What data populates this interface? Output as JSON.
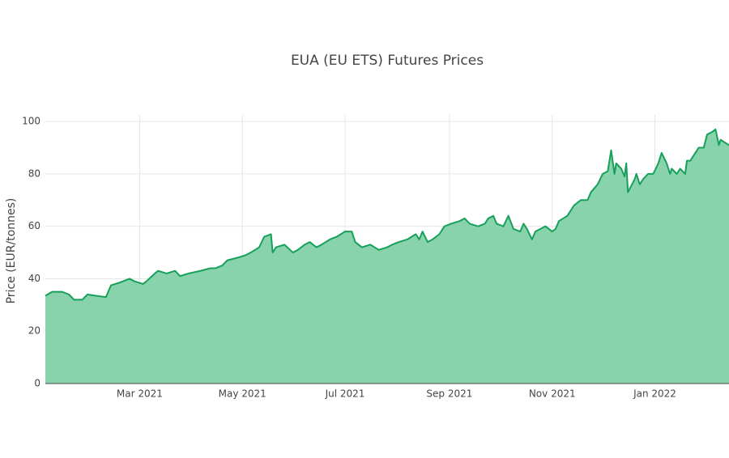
{
  "chart_data": {
    "type": "area",
    "title": "EUA (EU ETS) Futures Prices",
    "y_label": "Price (EUR/tonnes)",
    "color": "#16a05a",
    "fill_color": "#88d3ab",
    "grid": true,
    "xlim": [
      "2021-01-04",
      "2022-02-14"
    ],
    "xticks": [
      {
        "value": "2021-03-01",
        "label": "Mar 2021"
      },
      {
        "value": "2021-05-01",
        "label": "May 2021"
      },
      {
        "value": "2021-07-01",
        "label": "Jul 2021"
      },
      {
        "value": "2021-09-01",
        "label": "Sep 2021"
      },
      {
        "value": "2021-11-01",
        "label": "Nov 2021"
      },
      {
        "value": "2022-01-01",
        "label": "Jan 2022"
      }
    ],
    "ylim": [
      0,
      102.5
    ],
    "yticks": [
      0,
      20,
      40,
      60,
      80,
      100
    ],
    "x": [
      "2021-01-04",
      "2021-01-08",
      "2021-01-14",
      "2021-01-18",
      "2021-01-21",
      "2021-01-26",
      "2021-01-29",
      "2021-02-03",
      "2021-02-09",
      "2021-02-12",
      "2021-02-17",
      "2021-02-23",
      "2021-02-26",
      "2021-03-03",
      "2021-03-05",
      "2021-03-10",
      "2021-03-12",
      "2021-03-17",
      "2021-03-22",
      "2021-03-25",
      "2021-03-30",
      "2021-04-06",
      "2021-04-12",
      "2021-04-15",
      "2021-04-19",
      "2021-04-22",
      "2021-04-28",
      "2021-05-03",
      "2021-05-06",
      "2021-05-11",
      "2021-05-14",
      "2021-05-18",
      "2021-05-19",
      "2021-05-21",
      "2021-05-26",
      "2021-05-31",
      "2021-06-03",
      "2021-06-07",
      "2021-06-10",
      "2021-06-14",
      "2021-06-17",
      "2021-06-22",
      "2021-06-26",
      "2021-07-01",
      "2021-07-05",
      "2021-07-07",
      "2021-07-11",
      "2021-07-16",
      "2021-07-21",
      "2021-07-26",
      "2021-07-29",
      "2021-08-02",
      "2021-08-07",
      "2021-08-12",
      "2021-08-14",
      "2021-08-16",
      "2021-08-19",
      "2021-08-22",
      "2021-08-26",
      "2021-08-29",
      "2021-09-02",
      "2021-09-07",
      "2021-09-10",
      "2021-09-13",
      "2021-09-18",
      "2021-09-22",
      "2021-09-24",
      "2021-09-27",
      "2021-09-29",
      "2021-10-03",
      "2021-10-06",
      "2021-10-09",
      "2021-10-13",
      "2021-10-15",
      "2021-10-17",
      "2021-10-20",
      "2021-10-22",
      "2021-10-25",
      "2021-10-28",
      "2021-11-01",
      "2021-11-03",
      "2021-11-05",
      "2021-11-10",
      "2021-11-14",
      "2021-11-18",
      "2021-11-22",
      "2021-11-24",
      "2021-11-28",
      "2021-12-01",
      "2021-12-04",
      "2021-12-06",
      "2021-12-08",
      "2021-12-09",
      "2021-12-12",
      "2021-12-14",
      "2021-12-15",
      "2021-12-16",
      "2021-12-20",
      "2021-12-21",
      "2021-12-23",
      "2021-12-25",
      "2021-12-28",
      "2021-12-31",
      "2022-01-03",
      "2022-01-05",
      "2022-01-08",
      "2022-01-10",
      "2022-01-11",
      "2022-01-14",
      "2022-01-16",
      "2022-01-19",
      "2022-01-20",
      "2022-01-22",
      "2022-01-25",
      "2022-01-27",
      "2022-01-30",
      "2022-02-01",
      "2022-02-04",
      "2022-02-06",
      "2022-02-08",
      "2022-02-09",
      "2022-02-14"
    ],
    "values": [
      33.5,
      35,
      35,
      34,
      32,
      32,
      34,
      33.5,
      33,
      37.5,
      38.5,
      40,
      39,
      38,
      39,
      42,
      43,
      42,
      43,
      41,
      42,
      43,
      44,
      44,
      45,
      47,
      48,
      49,
      50,
      52,
      56,
      57,
      50,
      52,
      53,
      50,
      51,
      53,
      54,
      52,
      53,
      55,
      56,
      58,
      58,
      54,
      52,
      53,
      51,
      52,
      53,
      54,
      55,
      57,
      55,
      58,
      54,
      55,
      57,
      60,
      61,
      62,
      63,
      61,
      60,
      61,
      63,
      64,
      61,
      60,
      64,
      59,
      58,
      61,
      59,
      55,
      58,
      59,
      60,
      58,
      59,
      62,
      64,
      68,
      70,
      70,
      73,
      76,
      80,
      81,
      89,
      80,
      84,
      82,
      79,
      84,
      73,
      78,
      80,
      76,
      78,
      80,
      80,
      84,
      88,
      84,
      80,
      82,
      80,
      82,
      80,
      85,
      85,
      88,
      90,
      90,
      95,
      96,
      97,
      91,
      93,
      91
    ]
  }
}
